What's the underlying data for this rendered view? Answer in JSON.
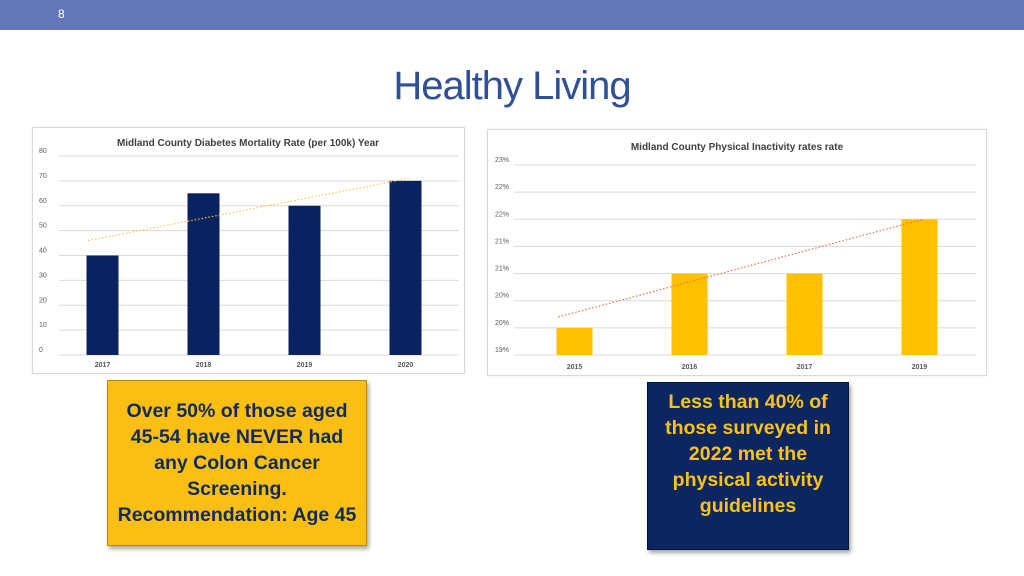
{
  "slide": {
    "number": "8",
    "title": "Healthy Living"
  },
  "chart_data": [
    {
      "type": "bar",
      "title": "Midland County Diabetes Mortality Rate (per 100k) Year",
      "categories": [
        "2017",
        "2018",
        "2019",
        "2020"
      ],
      "values": [
        40,
        65,
        60,
        70
      ],
      "y_ticks": [
        0,
        10,
        20,
        30,
        40,
        50,
        60,
        70,
        80
      ],
      "ylim": [
        0,
        80
      ],
      "xlabel": "",
      "ylabel": "",
      "trendline": {
        "style": "dotted",
        "start": 46,
        "end": 71
      },
      "grid": true,
      "bar_color": "#0b2260",
      "trend_color": "#f5c842"
    },
    {
      "type": "bar",
      "title": "Midland County Physical Inactivity rates rate",
      "categories": [
        "2015",
        "2016",
        "2017",
        "2019"
      ],
      "values": [
        20,
        21,
        21,
        22
      ],
      "y_ticks": [
        "19%",
        "20%",
        "20%",
        "21%",
        "21%",
        "22%",
        "22%",
        "23%"
      ],
      "ylim": [
        19.5,
        23
      ],
      "xlabel": "",
      "ylabel": "",
      "trendline": {
        "style": "dotted",
        "start": 20.2,
        "end": 22.0
      },
      "grid": true,
      "bar_color": "#ffc000",
      "trend_color": "#e8704a"
    }
  ],
  "callouts": {
    "left": "Over 50% of those aged 45-54 have NEVER had any Colon Cancer Screening. Recommendation: Age 45",
    "right": "Less than 40% of those surveyed in 2022 met the physical activity guidelines"
  }
}
